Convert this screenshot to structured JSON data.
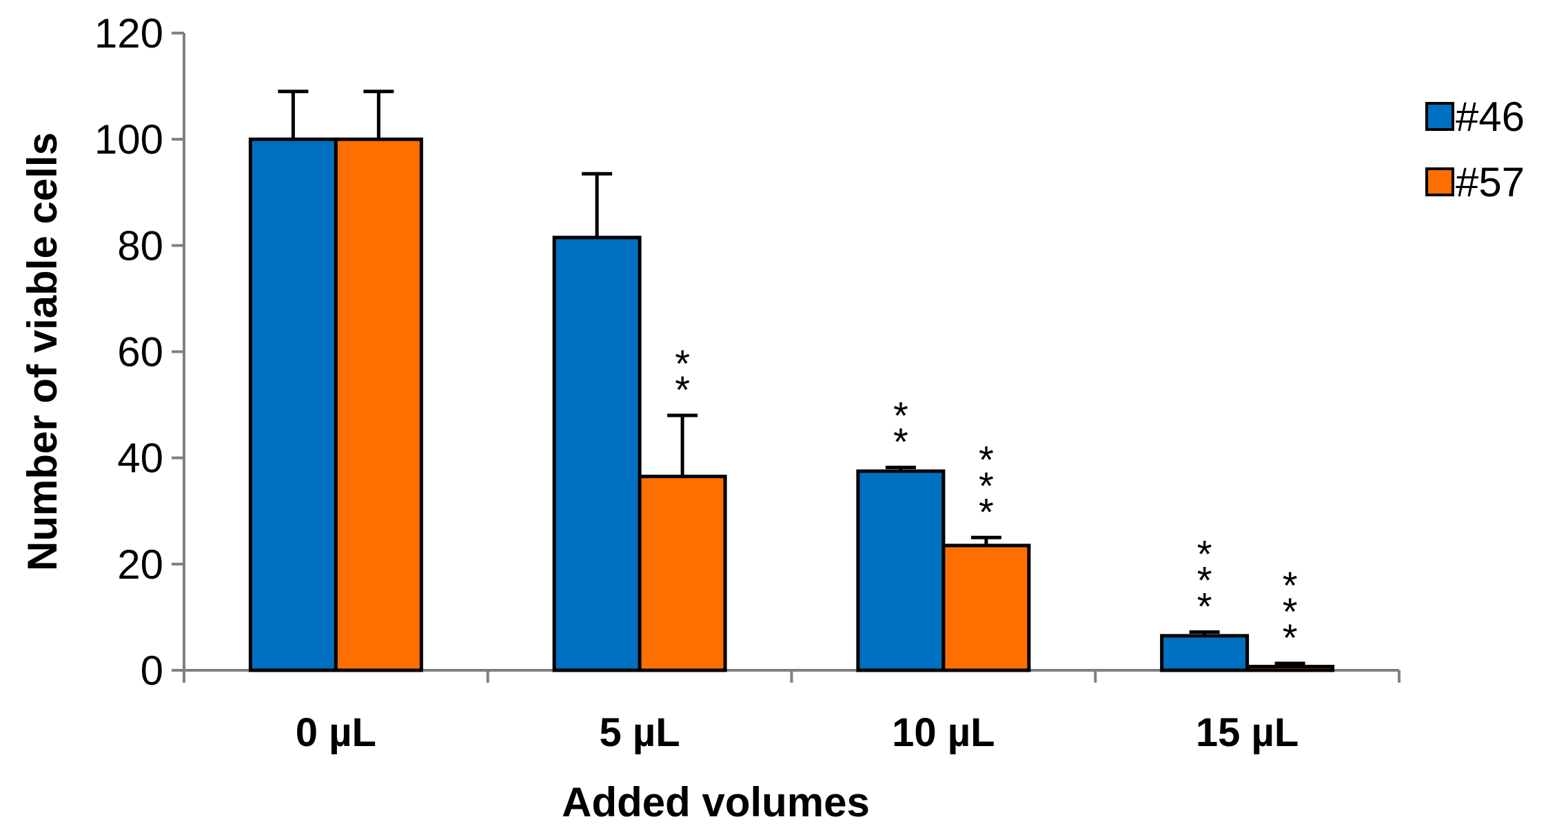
{
  "chart_data": {
    "type": "bar",
    "title": "",
    "xlabel": "Added volumes",
    "ylabel": "Number of viable cells",
    "ylim": [
      0,
      120
    ],
    "yticks": [
      0,
      20,
      40,
      60,
      80,
      100,
      120
    ],
    "ytick_labels": [
      "0",
      "20",
      "40",
      "60",
      "80",
      "100",
      "120"
    ],
    "categories": [
      "0 µL",
      "5 µL",
      "10 µL",
      "15 µL"
    ],
    "series": [
      {
        "name": "#46",
        "color": "#0070C0",
        "values": [
          100,
          81.5,
          37.5,
          6.5
        ],
        "errors": [
          9,
          12,
          0.7,
          0.7
        ],
        "significance": [
          "",
          "",
          "*\n*",
          "*\n*\n*"
        ]
      },
      {
        "name": "#57",
        "color": "#FF6F00",
        "values": [
          100,
          36.5,
          23.5,
          0.7
        ],
        "errors": [
          9,
          11.5,
          1.5,
          0.6
        ],
        "significance": [
          "",
          "*\n*",
          "*\n*\n*",
          "*\n*\n*"
        ]
      }
    ],
    "legend_position": "right",
    "grid": false
  }
}
